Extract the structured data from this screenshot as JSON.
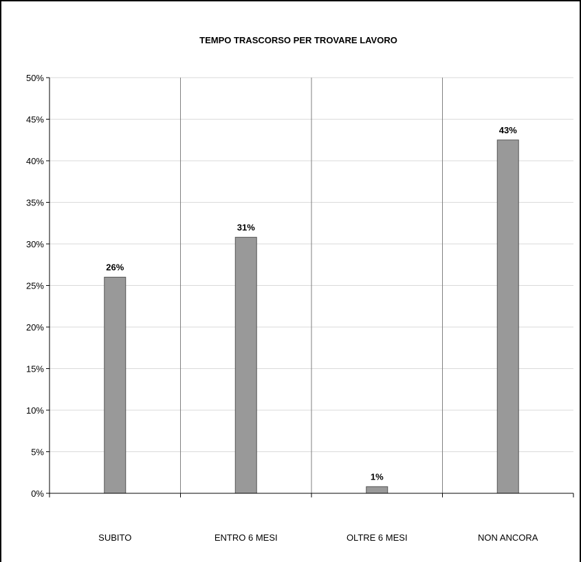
{
  "chart_data": {
    "type": "bar",
    "title": "TEMPO TRASCORSO PER TROVARE LAVORO",
    "categories": [
      "SUBITO",
      "ENTRO 6 MESI",
      "OLTRE 6 MESI",
      "NON ANCORA"
    ],
    "values": [
      26.0,
      30.8,
      0.8,
      42.5
    ],
    "data_labels": [
      "26%",
      "31%",
      "1%",
      "43%"
    ],
    "yticks": [
      "0%",
      "5%",
      "10%",
      "15%",
      "20%",
      "25%",
      "30%",
      "35%",
      "40%",
      "45%",
      "50%"
    ],
    "ylim": [
      0,
      50
    ],
    "xlabel": "",
    "ylabel": "",
    "grid": true,
    "bar_color": "#999999",
    "bar_stroke": "#555555",
    "grid_color": "#d9d9d9",
    "divider_color": "#7f7f7f"
  }
}
